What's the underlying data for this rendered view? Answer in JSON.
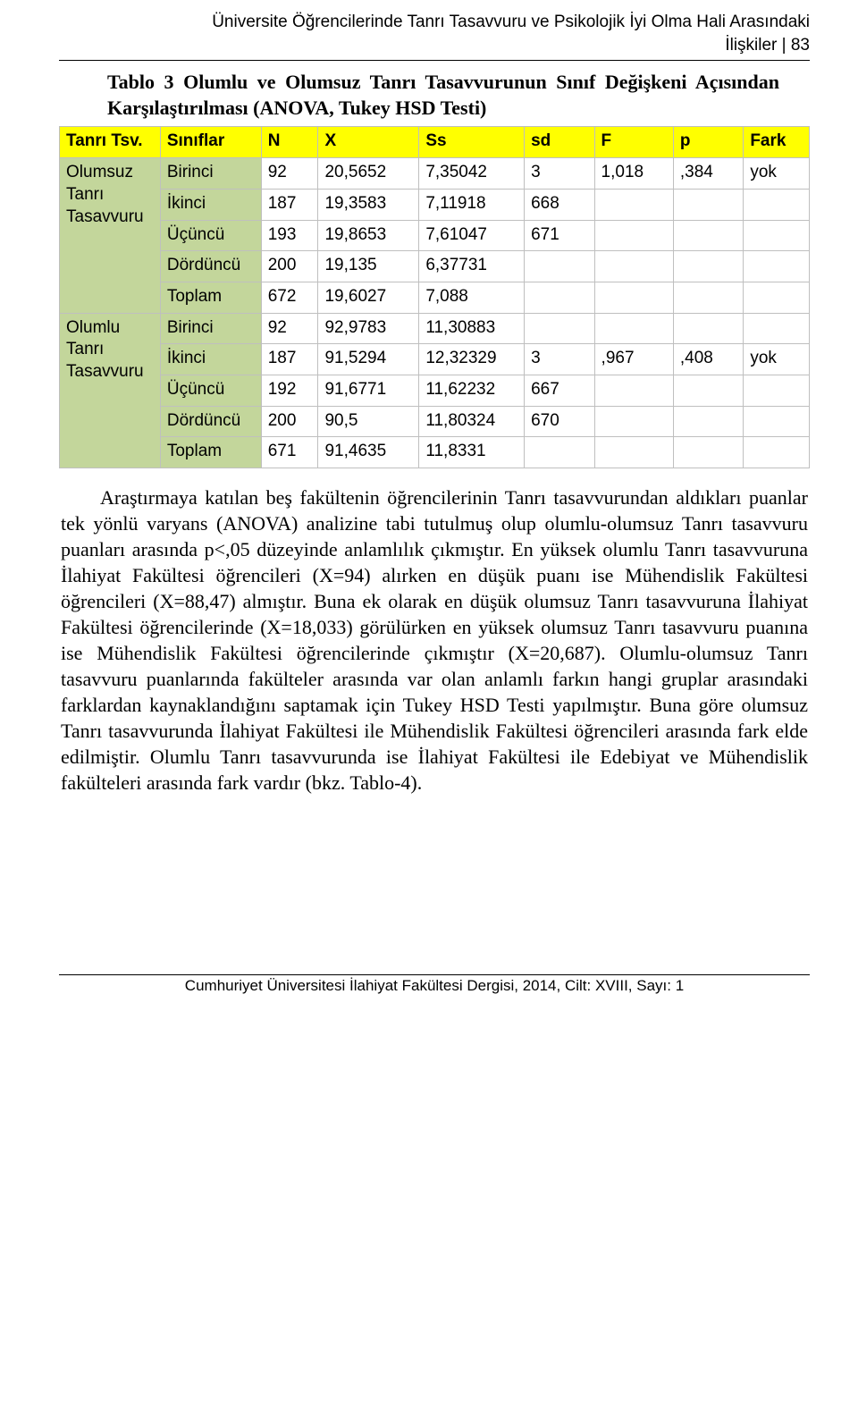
{
  "colors": {
    "header_bg": "#ffff00",
    "leftcol_bg": "#c3d69b",
    "cell_bg": "#ffffff",
    "border": "#bfbfbf",
    "text": "#000000"
  },
  "fonts": {
    "serif_family": "Times New Roman",
    "sans_family": "Helvetica Neue",
    "running_head_size_pt": 14,
    "caption_size_pt": 16,
    "table_size_pt": 14,
    "body_size_pt": 16,
    "footer_size_pt": 13
  },
  "running_head": {
    "line1": "Üniversite Öğrencilerinde Tanrı Tasavvuru ve Psikolojik İyi Olma Hali Arasındaki",
    "line2": "İlişkiler | 83"
  },
  "table_caption": "Tablo 3 Olumlu ve Olumsuz Tanrı Tasavvurunun Sınıf Değişkeni Açısından Karşılaştırılması (ANOVA, Tukey HSD Testi)",
  "table": {
    "type": "table",
    "columns": [
      "Tanrı Tsv.",
      "Sınıflar",
      "N",
      "X",
      "Ss",
      "sd",
      "F",
      "p",
      "Fark"
    ],
    "groups": [
      {
        "label": "Olumsuz Tanrı Tasavvuru",
        "rows": [
          {
            "sinif": "Birinci",
            "n": "92",
            "x": "20,5652",
            "ss": "7,35042",
            "sd": "3",
            "f": "1,018",
            "p": ",384",
            "fark": "yok"
          },
          {
            "sinif": "İkinci",
            "n": "187",
            "x": "19,3583",
            "ss": "7,11918",
            "sd": "668",
            "f": "",
            "p": "",
            "fark": ""
          },
          {
            "sinif": "Üçüncü",
            "n": "193",
            "x": "19,8653",
            "ss": "7,61047",
            "sd": "671",
            "f": "",
            "p": "",
            "fark": ""
          },
          {
            "sinif": "Dördüncü",
            "n": "200",
            "x": "19,135",
            "ss": "6,37731",
            "sd": "",
            "f": "",
            "p": "",
            "fark": ""
          },
          {
            "sinif": "Toplam",
            "n": "672",
            "x": "19,6027",
            "ss": "7,088",
            "sd": "",
            "f": "",
            "p": "",
            "fark": ""
          }
        ]
      },
      {
        "label": "Olumlu Tanrı Tasavvuru",
        "rows": [
          {
            "sinif": "Birinci",
            "n": "92",
            "x": "92,9783",
            "ss": "11,30883",
            "sd": "",
            "f": "",
            "p": "",
            "fark": ""
          },
          {
            "sinif": "İkinci",
            "n": "187",
            "x": "91,5294",
            "ss": "12,32329",
            "sd": "3",
            "f": ",967",
            "p": ",408",
            "fark": "yok"
          },
          {
            "sinif": "Üçüncü",
            "n": "192",
            "x": "91,6771",
            "ss": "11,62232",
            "sd": "667",
            "f": "",
            "p": "",
            "fark": ""
          },
          {
            "sinif": "Dördüncü",
            "n": "200",
            "x": "90,5",
            "ss": "11,80324",
            "sd": "670",
            "f": "",
            "p": "",
            "fark": ""
          },
          {
            "sinif": "Toplam",
            "n": "671",
            "x": "91,4635",
            "ss": "11,8331",
            "sd": "",
            "f": "",
            "p": "",
            "fark": ""
          }
        ]
      }
    ]
  },
  "body_paragraph": "Araştırmaya katılan beş fakültenin öğrencilerinin Tanrı tasavvurundan aldıkları puanlar tek yönlü varyans (ANOVA) analizine tabi tutulmuş olup olumlu-olumsuz Tanrı tasavvuru puanları arasında p<,05 düzeyinde anlamlılık çıkmıştır. En yüksek olumlu Tanrı tasavvuruna İlahiyat Fakültesi öğrencileri (X=94) alırken en düşük puanı ise Mühendislik Fakültesi öğrencileri (X=88,47) almıştır. Buna ek olarak en düşük olumsuz Tanrı tasavvuruna İlahiyat Fakültesi öğrencilerinde (X=18,033) görülürken en yüksek olumsuz Tanrı tasavvuru puanına ise Mühendislik Fakültesi öğrencilerinde çıkmıştır (X=20,687). Olumlu-olumsuz Tanrı tasavvuru puanlarında fakülteler arasında var olan anlamlı farkın hangi gruplar arasındaki farklardan kaynaklandığını saptamak için Tukey HSD Testi yapılmıştır. Buna göre olumsuz Tanrı tasavvurunda İlahiyat Fakültesi ile Mühendislik Fakültesi öğrencileri arasında fark elde edilmiştir. Olumlu Tanrı tasavvurunda ise İlahiyat Fakültesi ile Edebiyat ve Mühendislik fakülteleri arasında fark vardır (bkz. Tablo-4).",
  "footer": "Cumhuriyet Üniversitesi İlahiyat Fakültesi Dergisi, 2014, Cilt: XVIII, Sayı: 1"
}
